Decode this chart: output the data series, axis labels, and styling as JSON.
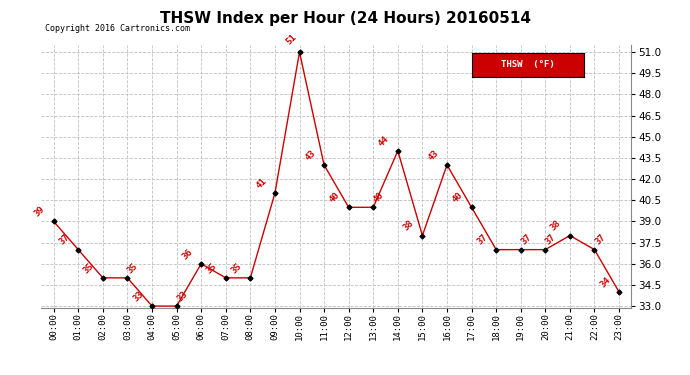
{
  "title": "THSW Index per Hour (24 Hours) 20160514",
  "copyright": "Copyright 2016 Cartronics.com",
  "legend_label": "THSW  (°F)",
  "hours": [
    0,
    1,
    2,
    3,
    4,
    5,
    6,
    7,
    8,
    9,
    10,
    11,
    12,
    13,
    14,
    15,
    16,
    17,
    18,
    19,
    20,
    21,
    22,
    23
  ],
  "hour_labels": [
    "00:00",
    "01:00",
    "02:00",
    "03:00",
    "04:00",
    "05:00",
    "06:00",
    "07:00",
    "08:00",
    "09:00",
    "10:00",
    "11:00",
    "12:00",
    "13:00",
    "14:00",
    "15:00",
    "16:00",
    "17:00",
    "18:00",
    "19:00",
    "20:00",
    "21:00",
    "22:00",
    "23:00"
  ],
  "values": [
    39,
    37,
    35,
    35,
    33,
    33,
    36,
    35,
    35,
    41,
    51,
    43,
    40,
    40,
    44,
    38,
    43,
    40,
    37,
    37,
    37,
    38,
    37,
    34
  ],
  "ylim_min": 33.0,
  "ylim_max": 51.5,
  "yticks": [
    33.0,
    34.5,
    36.0,
    37.5,
    39.0,
    40.5,
    42.0,
    43.5,
    45.0,
    46.5,
    48.0,
    49.5,
    51.0
  ],
  "line_color": "#cc0000",
  "marker_color": "#000000",
  "grid_color": "#c0c0c0",
  "bg_color": "#ffffff",
  "title_fontsize": 11,
  "annotation_color": "#cc0000",
  "legend_bg": "#cc0000",
  "legend_text_color": "#ffffff"
}
